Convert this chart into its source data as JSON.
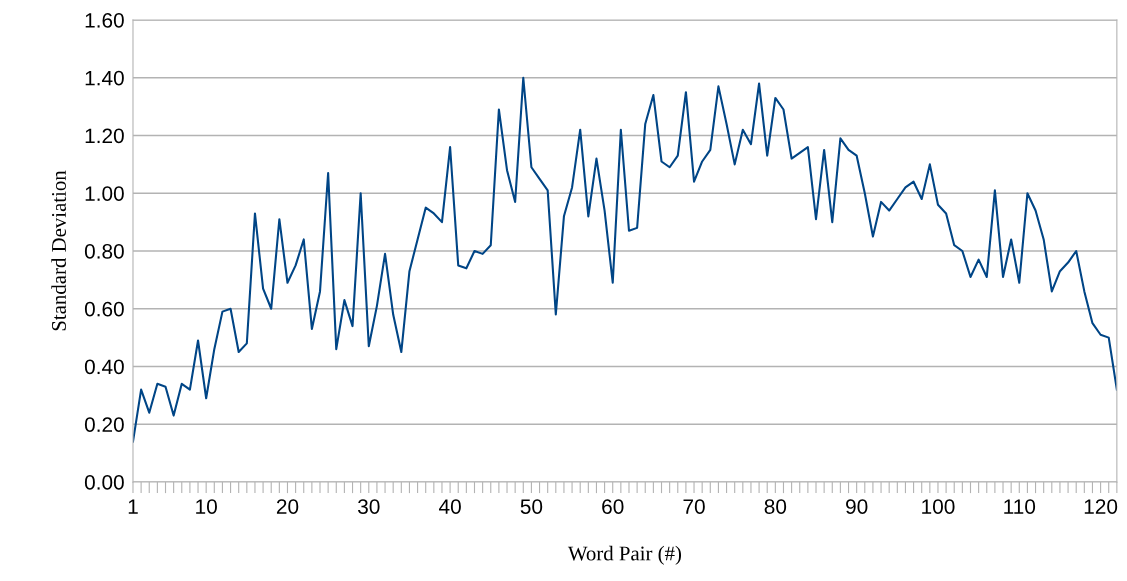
{
  "chart_data": {
    "type": "line",
    "xlabel": "Word Pair (#)",
    "ylabel": "Standard Deviation",
    "categories": [
      "1",
      null,
      null,
      null,
      null,
      null,
      null,
      null,
      null,
      "10",
      null,
      null,
      null,
      null,
      null,
      null,
      null,
      null,
      null,
      "20",
      null,
      null,
      null,
      null,
      null,
      null,
      null,
      null,
      null,
      "30",
      null,
      null,
      null,
      null,
      null,
      null,
      null,
      null,
      null,
      "40",
      null,
      null,
      null,
      null,
      null,
      null,
      null,
      null,
      null,
      "50",
      null,
      null,
      null,
      null,
      null,
      null,
      null,
      null,
      null,
      "60",
      null,
      null,
      null,
      null,
      null,
      null,
      null,
      null,
      null,
      "70",
      null,
      null,
      null,
      null,
      null,
      null,
      null,
      null,
      null,
      "80",
      null,
      null,
      null,
      null,
      null,
      null,
      null,
      null,
      null,
      "90",
      null,
      null,
      null,
      null,
      null,
      null,
      null,
      null,
      null,
      "100",
      null,
      null,
      null,
      null,
      null,
      null,
      null,
      null,
      null,
      "110",
      null,
      null,
      null,
      null,
      null,
      null,
      null,
      null,
      null,
      "120",
      null,
      null
    ],
    "series": [
      {
        "color": "#004586",
        "values": [
          0.14,
          0.32,
          0.24,
          0.34,
          0.33,
          0.23,
          0.34,
          0.32,
          0.49,
          0.29,
          0.46,
          0.59,
          0.6,
          0.45,
          0.48,
          0.93,
          0.67,
          0.6,
          0.91,
          0.69,
          0.75,
          0.84,
          0.53,
          0.66,
          1.07,
          0.46,
          0.63,
          0.54,
          1.0,
          0.47,
          0.61,
          0.79,
          0.58,
          0.45,
          0.73,
          0.84,
          0.95,
          0.93,
          0.9,
          1.16,
          0.75,
          0.74,
          0.8,
          0.79,
          0.82,
          1.29,
          1.08,
          0.97,
          1.4,
          1.09,
          1.05,
          1.01,
          0.58,
          0.92,
          1.02,
          1.22,
          0.92,
          1.12,
          0.94,
          0.69,
          1.22,
          0.87,
          0.88,
          1.24,
          1.34,
          1.11,
          1.09,
          1.13,
          1.35,
          1.04,
          1.11,
          1.15,
          1.37,
          1.24,
          1.1,
          1.22,
          1.17,
          1.38,
          1.13,
          1.33,
          1.29,
          1.12,
          1.14,
          1.16,
          0.91,
          1.15,
          0.9,
          1.19,
          1.15,
          1.13,
          1.0,
          0.85,
          0.97,
          0.94,
          0.98,
          1.02,
          1.04,
          0.98,
          1.1,
          0.96,
          0.93,
          0.82,
          0.8,
          0.71,
          0.77,
          0.71,
          1.01,
          0.71,
          0.84,
          0.69,
          1.0,
          0.94,
          0.84,
          0.66,
          0.73,
          0.76,
          0.8,
          0.66,
          0.55,
          0.51,
          0.5,
          0.32
        ]
      }
    ],
    "ylim": [
      0,
      1.6
    ],
    "yticks": [
      {
        "value": 0,
        "label": "0.00"
      },
      {
        "value": 0.2,
        "label": "0.20"
      },
      {
        "value": 0.4,
        "label": "0.40"
      },
      {
        "value": 0.6,
        "label": "0.60"
      },
      {
        "value": 0.8,
        "label": "0.80"
      },
      {
        "value": 1.0,
        "label": "1.00"
      },
      {
        "value": 1.2,
        "label": "1.20"
      },
      {
        "value": 1.4,
        "label": "1.40"
      },
      {
        "value": 1.6,
        "label": "1.60"
      }
    ],
    "grid": "y",
    "marker": "none",
    "line_style": "solid"
  }
}
